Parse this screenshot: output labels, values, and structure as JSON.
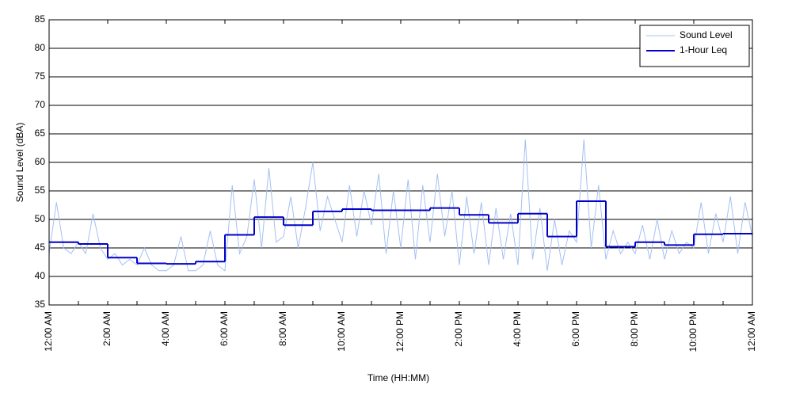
{
  "chart_data": {
    "type": "line",
    "xlabel": "Time (HH:MM)",
    "ylabel": "Sound Level (dBA)",
    "xlim": [
      0,
      24
    ],
    "ylim": [
      35,
      85
    ],
    "xticks": [
      {
        "value": 0,
        "label": "12:00 AM"
      },
      {
        "value": 2,
        "label": "2:00 AM"
      },
      {
        "value": 4,
        "label": "4:00 AM"
      },
      {
        "value": 6,
        "label": "6:00 AM"
      },
      {
        "value": 8,
        "label": "8:00 AM"
      },
      {
        "value": 10,
        "label": "10:00 AM"
      },
      {
        "value": 12,
        "label": "12:00 PM"
      },
      {
        "value": 14,
        "label": "2:00 PM"
      },
      {
        "value": 16,
        "label": "4:00 PM"
      },
      {
        "value": 18,
        "label": "6:00 PM"
      },
      {
        "value": 20,
        "label": "8:00 PM"
      },
      {
        "value": 22,
        "label": "10:00 PM"
      },
      {
        "value": 24,
        "label": "12:00 AM"
      }
    ],
    "yticks": [
      35,
      40,
      45,
      50,
      55,
      60,
      65,
      70,
      75,
      80,
      85
    ],
    "grid": true,
    "legend": "upper right",
    "series": [
      {
        "name": "Sound Level",
        "color": "#a4c0f2",
        "step": false,
        "x": [
          0,
          0.25,
          0.5,
          0.75,
          1,
          1.25,
          1.5,
          1.75,
          2,
          2.25,
          2.5,
          2.75,
          3,
          3.25,
          3.5,
          3.75,
          4,
          4.25,
          4.5,
          4.75,
          5,
          5.25,
          5.5,
          5.75,
          6,
          6.25,
          6.5,
          6.75,
          7,
          7.25,
          7.5,
          7.75,
          8,
          8.25,
          8.5,
          8.75,
          9,
          9.25,
          9.5,
          9.75,
          10,
          10.25,
          10.5,
          10.75,
          11,
          11.25,
          11.5,
          11.75,
          12,
          12.25,
          12.5,
          12.75,
          13,
          13.25,
          13.5,
          13.75,
          14,
          14.25,
          14.5,
          14.75,
          15,
          15.25,
          15.5,
          15.75,
          16,
          16.25,
          16.5,
          16.75,
          17,
          17.25,
          17.5,
          17.75,
          18,
          18.25,
          18.5,
          18.75,
          19,
          19.25,
          19.5,
          19.75,
          20,
          20.25,
          20.5,
          20.75,
          21,
          21.25,
          21.5,
          21.75,
          22,
          22.25,
          22.5,
          22.75,
          23,
          23.25,
          23.5,
          23.75,
          24
        ],
        "values": [
          44,
          53,
          45,
          44,
          46,
          44,
          51,
          45,
          43,
          44,
          42,
          43,
          42,
          45,
          42,
          41,
          41,
          42,
          47,
          41,
          41,
          42,
          48,
          42,
          41,
          56,
          44,
          47,
          57,
          45,
          59,
          46,
          47,
          54,
          45,
          52,
          60,
          48,
          54,
          50,
          46,
          56,
          47,
          55,
          49,
          58,
          44,
          55,
          45,
          57,
          43,
          56,
          46,
          58,
          47,
          55,
          42,
          54,
          44,
          53,
          42,
          52,
          43,
          51,
          42,
          64,
          43,
          52,
          41,
          50,
          42,
          48,
          46,
          64,
          45,
          56,
          43,
          48,
          44,
          46,
          44,
          49,
          43,
          50,
          43,
          48,
          44,
          46,
          45,
          53,
          44,
          51,
          46,
          54,
          44,
          53,
          47
        ]
      },
      {
        "name": "1-Hour Leq",
        "color": "#0000c8",
        "step": true,
        "x": [
          0,
          1,
          2,
          3,
          4,
          5,
          6,
          7,
          8,
          9,
          10,
          11,
          12,
          13,
          14,
          15,
          16,
          17,
          18,
          19,
          20,
          21,
          22,
          23
        ],
        "values": [
          46,
          45.7,
          43.3,
          42.3,
          42.2,
          42.6,
          47.3,
          50.4,
          49,
          51.4,
          51.8,
          51.6,
          51.6,
          52,
          50.8,
          49.4,
          51,
          47,
          53.2,
          45.2,
          46,
          45.5,
          47.4,
          47.5
        ]
      }
    ]
  }
}
